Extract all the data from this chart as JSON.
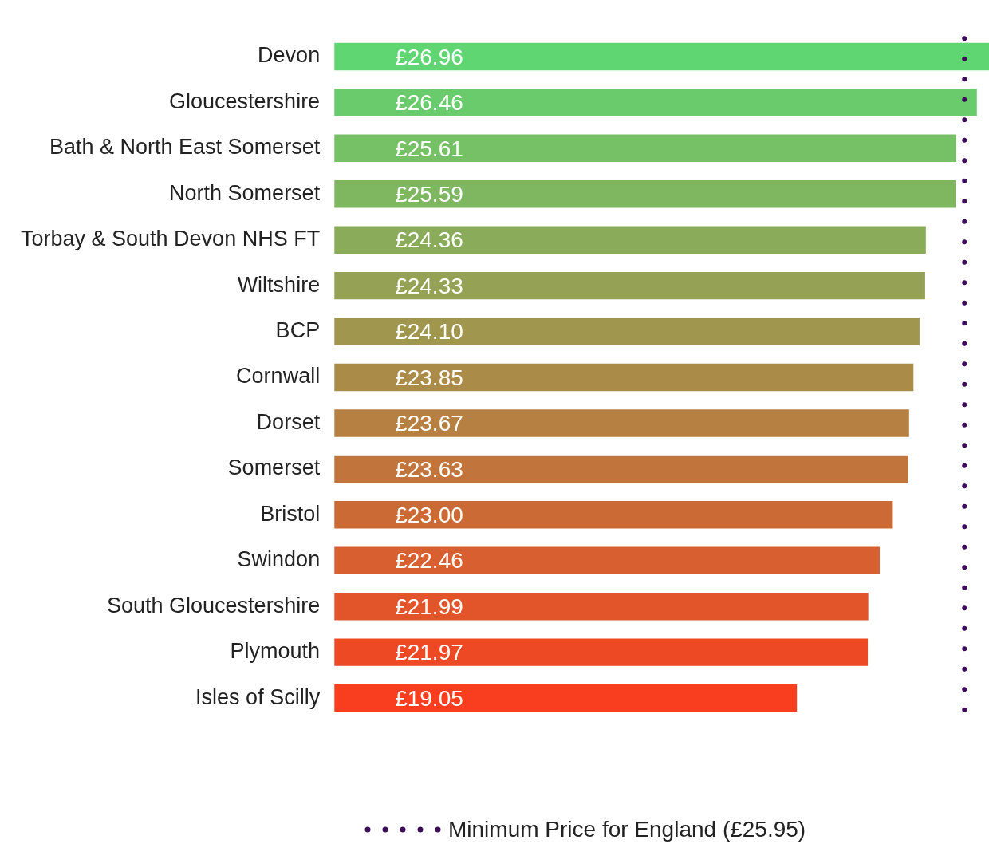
{
  "chart_data": {
    "type": "bar",
    "orientation": "horizontal",
    "categories": [
      "Devon",
      "Gloucestershire",
      "Bath & North East Somerset",
      "North Somerset",
      "Torbay & South Devon NHS FT",
      "Wiltshire",
      "BCP",
      "Cornwall",
      "Dorset",
      "Somerset",
      "Bristol",
      "Swindon",
      "South Gloucestershire",
      "Plymouth",
      "Isles of Scilly"
    ],
    "values": [
      26.96,
      26.46,
      25.61,
      25.59,
      24.36,
      24.33,
      24.1,
      23.85,
      23.67,
      23.63,
      23.0,
      22.46,
      21.99,
      21.97,
      19.05
    ],
    "value_labels": [
      "£26.96",
      "£26.46",
      "£25.61",
      "£25.59",
      "£24.36",
      "£24.33",
      "£24.10",
      "£23.85",
      "£23.67",
      "£23.63",
      "£23.00",
      "£22.46",
      "£21.99",
      "£21.97",
      "£19.05"
    ],
    "colors": [
      "#5fd672",
      "#6acb6c",
      "#76c065",
      "#7fb660",
      "#8aab5a",
      "#95a154",
      "#a0964e",
      "#ab8b48",
      "#b68042",
      "#c1753c",
      "#cc6a36",
      "#d75f30",
      "#e2542a",
      "#ed4924",
      "#f83e1e"
    ],
    "ref_lines": [
      {
        "axis": "x",
        "value": 25.95,
        "label": "Minimum Price for England (£25.95)",
        "color": "#3d0a5c",
        "line_style": "dotted"
      }
    ],
    "legend": "bottom"
  }
}
